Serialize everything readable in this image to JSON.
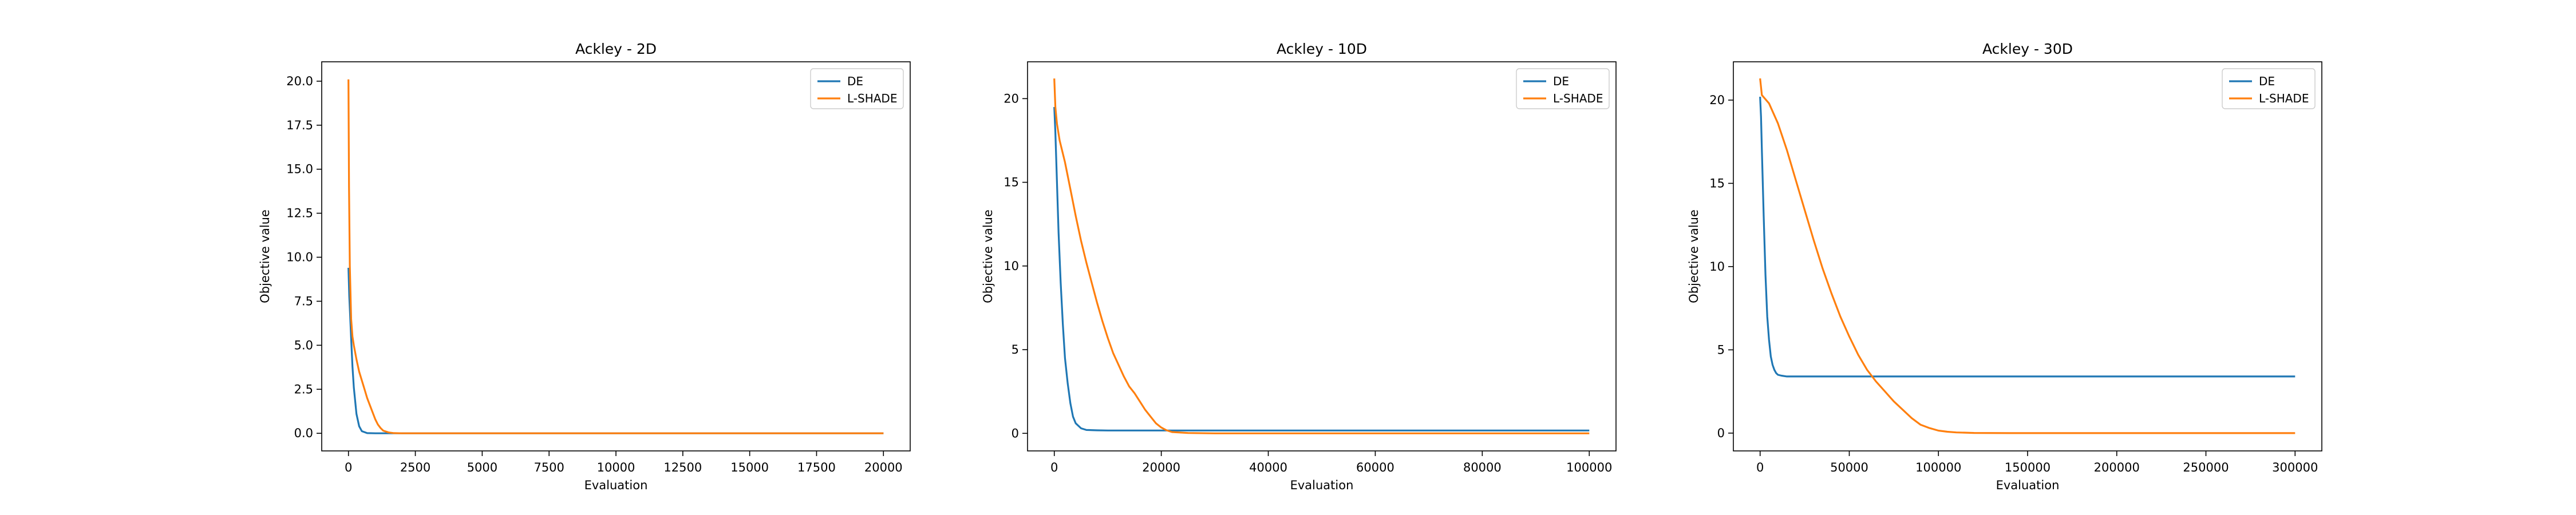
{
  "chart_data": [
    {
      "type": "line",
      "title": "Ackley - 2D",
      "xlabel": "Evaluation",
      "ylabel": "Objective value",
      "xlim": [
        -1000,
        21000
      ],
      "ylim": [
        -1.0,
        21.1
      ],
      "xticks": [
        0,
        2500,
        5000,
        7500,
        10000,
        12500,
        15000,
        17500,
        20000
      ],
      "xtick_labels": [
        "0",
        "2500",
        "5000",
        "7500",
        "10000",
        "12500",
        "15000",
        "17500",
        "20000"
      ],
      "yticks": [
        0,
        2.5,
        5,
        7.5,
        10,
        12.5,
        15,
        17.5,
        20
      ],
      "ytick_labels": [
        "0.0",
        "2.5",
        "5.0",
        "7.5",
        "10.0",
        "12.5",
        "15.0",
        "17.5",
        "20.0"
      ],
      "grid": false,
      "legend": "upper-right",
      "series": [
        {
          "name": "DE",
          "color": "#1f77b4",
          "x": [
            0,
            30,
            60,
            100,
            150,
            200,
            300,
            400,
            500,
            700,
            1000,
            20000
          ],
          "y": [
            9.4,
            7.8,
            6.8,
            5.4,
            3.8,
            2.6,
            1.1,
            0.4,
            0.12,
            0.01,
            0.0,
            0.0
          ]
        },
        {
          "name": "L-SHADE",
          "color": "#ff7f0e",
          "x": [
            0,
            20,
            50,
            100,
            150,
            200,
            300,
            400,
            500,
            600,
            700,
            800,
            900,
            1000,
            1100,
            1200,
            1300,
            1500,
            1700,
            2000,
            20000
          ],
          "y": [
            20.1,
            14.0,
            9.5,
            6.5,
            5.5,
            5.0,
            4.2,
            3.5,
            3.0,
            2.5,
            2.0,
            1.6,
            1.2,
            0.8,
            0.5,
            0.3,
            0.15,
            0.05,
            0.01,
            0.0,
            0.0
          ]
        }
      ]
    },
    {
      "type": "line",
      "title": "Ackley - 10D",
      "xlabel": "Evaluation",
      "ylabel": "Objective value",
      "xlim": [
        -5000,
        105000
      ],
      "ylim": [
        -1.05,
        22.2
      ],
      "xticks": [
        0,
        20000,
        40000,
        60000,
        80000,
        100000
      ],
      "xtick_labels": [
        "0",
        "20000",
        "40000",
        "60000",
        "80000",
        "100000"
      ],
      "yticks": [
        0,
        5,
        10,
        15,
        20
      ],
      "ytick_labels": [
        "0",
        "5",
        "10",
        "15",
        "20"
      ],
      "grid": false,
      "legend": "upper-right",
      "series": [
        {
          "name": "DE",
          "color": "#1f77b4",
          "x": [
            0,
            200,
            500,
            800,
            1200,
            1600,
            2000,
            2500,
            3000,
            3500,
            4000,
            5000,
            6000,
            8000,
            10000,
            30000,
            100000
          ],
          "y": [
            19.5,
            18.0,
            15.0,
            12.0,
            9.0,
            6.5,
            4.5,
            3.0,
            1.8,
            1.0,
            0.6,
            0.3,
            0.2,
            0.18,
            0.17,
            0.17,
            0.17
          ]
        },
        {
          "name": "L-SHADE",
          "color": "#ff7f0e",
          "x": [
            0,
            200,
            500,
            1000,
            2000,
            3000,
            4000,
            5000,
            6000,
            7000,
            8000,
            9000,
            10000,
            11000,
            12000,
            13000,
            14000,
            15000,
            16000,
            17000,
            18000,
            19000,
            20000,
            21000,
            22000,
            25000,
            30000,
            100000
          ],
          "y": [
            21.2,
            19.5,
            18.5,
            17.5,
            16.2,
            14.6,
            13.0,
            11.5,
            10.2,
            9.0,
            7.8,
            6.7,
            5.7,
            4.8,
            4.1,
            3.4,
            2.8,
            2.4,
            1.9,
            1.4,
            1.0,
            0.6,
            0.35,
            0.18,
            0.08,
            0.02,
            0.0,
            0.0
          ]
        }
      ]
    },
    {
      "type": "line",
      "title": "Ackley - 30D",
      "xlabel": "Evaluation",
      "ylabel": "Objective value",
      "xlim": [
        -15000,
        315000
      ],
      "ylim": [
        -1.07,
        22.3
      ],
      "xticks": [
        0,
        50000,
        100000,
        150000,
        200000,
        250000,
        300000
      ],
      "xtick_labels": [
        "0",
        "50000",
        "100000",
        "150000",
        "200000",
        "250000",
        "300000"
      ],
      "yticks": [
        0,
        5,
        10,
        15,
        20
      ],
      "ytick_labels": [
        "0",
        "5",
        "10",
        "15",
        "20"
      ],
      "grid": false,
      "legend": "upper-right",
      "series": [
        {
          "name": "DE",
          "color": "#1f77b4",
          "x": [
            0,
            500,
            1000,
            2000,
            3000,
            4000,
            5000,
            6000,
            7000,
            8000,
            9000,
            10000,
            12000,
            15000,
            20000,
            300000
          ],
          "y": [
            20.2,
            19.0,
            17.0,
            13.0,
            9.5,
            7.0,
            5.6,
            4.6,
            4.1,
            3.8,
            3.6,
            3.5,
            3.45,
            3.4,
            3.4,
            3.4
          ]
        },
        {
          "name": "L-SHADE",
          "color": "#ff7f0e",
          "x": [
            0,
            1000,
            5000,
            10000,
            15000,
            20000,
            25000,
            30000,
            35000,
            40000,
            45000,
            50000,
            55000,
            60000,
            65000,
            70000,
            75000,
            80000,
            85000,
            90000,
            95000,
            100000,
            105000,
            110000,
            120000,
            140000,
            300000
          ],
          "y": [
            21.3,
            20.3,
            19.8,
            18.6,
            17.0,
            15.2,
            13.4,
            11.6,
            9.9,
            8.4,
            7.0,
            5.8,
            4.7,
            3.8,
            3.1,
            2.5,
            1.9,
            1.4,
            0.9,
            0.5,
            0.3,
            0.15,
            0.08,
            0.04,
            0.01,
            0.0,
            0.0
          ]
        }
      ]
    }
  ]
}
